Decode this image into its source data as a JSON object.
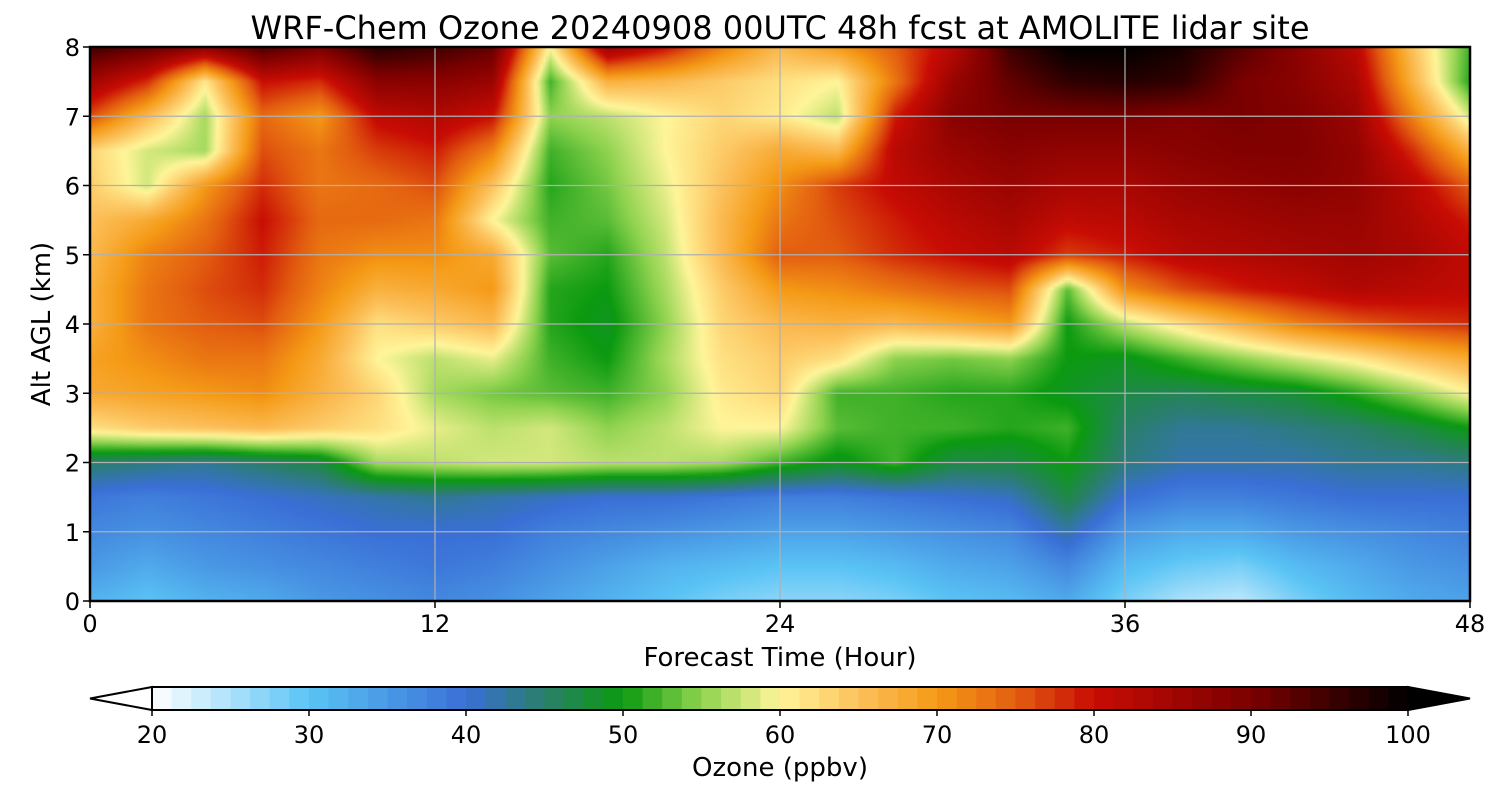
{
  "chart_data": {
    "type": "heatmap",
    "title": "WRF-Chem Ozone  20240908 00UTC 48h fcst at AMOLITE lidar site",
    "xlabel": "Forecast Time (Hour)",
    "ylabel": "Alt AGL (km)",
    "xlim": [
      0,
      48
    ],
    "ylim": [
      0,
      8
    ],
    "x_ticks": [
      "0",
      "12",
      "24",
      "36",
      "48"
    ],
    "y_ticks": [
      "0",
      "1",
      "2",
      "3",
      "4",
      "5",
      "6",
      "7",
      "8"
    ],
    "grid": true,
    "colorbar": {
      "label": "Ozone  (ppbv)",
      "range": [
        20,
        100
      ],
      "ticks": [
        "20",
        "30",
        "40",
        "50",
        "60",
        "70",
        "80",
        "90",
        "100"
      ],
      "extend": "both",
      "stops": [
        {
          "v": 20,
          "c": "#ffffff"
        },
        {
          "v": 30,
          "c": "#5ac4f5"
        },
        {
          "v": 40,
          "c": "#3a6fd6"
        },
        {
          "v": 45,
          "c": "#2a7f6a"
        },
        {
          "v": 50,
          "c": "#0b9a10"
        },
        {
          "v": 55,
          "c": "#8fd34f"
        },
        {
          "v": 60,
          "c": "#fff59a"
        },
        {
          "v": 65,
          "c": "#fcc15c"
        },
        {
          "v": 70,
          "c": "#f59a16"
        },
        {
          "v": 75,
          "c": "#e35e10"
        },
        {
          "v": 80,
          "c": "#c80c04"
        },
        {
          "v": 90,
          "c": "#7a0000"
        },
        {
          "v": 100,
          "c": "#000000"
        }
      ]
    },
    "x": [
      0,
      2,
      4,
      6,
      8,
      10,
      12,
      14,
      16,
      18,
      20,
      22,
      24,
      26,
      28,
      30,
      32,
      34,
      36,
      38,
      40,
      42,
      44,
      46,
      48
    ],
    "y": [
      0,
      0.5,
      1,
      1.5,
      2,
      2.5,
      3,
      3.5,
      4,
      4.5,
      5,
      5.5,
      6,
      6.5,
      7,
      7.5,
      8
    ],
    "z": [
      [
        32,
        30,
        32,
        33,
        35,
        36,
        37,
        36,
        34,
        32,
        30,
        28,
        27,
        27,
        28,
        30,
        31,
        33,
        28,
        25,
        24,
        28,
        31,
        33,
        34
      ],
      [
        35,
        33,
        35,
        36,
        37,
        38,
        39,
        38,
        36,
        34,
        32,
        31,
        30,
        30,
        31,
        33,
        34,
        37,
        31,
        29,
        28,
        31,
        33,
        35,
        36
      ],
      [
        37,
        36,
        37,
        38,
        39,
        40,
        40,
        40,
        38,
        37,
        36,
        35,
        34,
        34,
        35,
        36,
        37,
        42,
        35,
        33,
        33,
        35,
        36,
        37,
        38
      ],
      [
        39,
        38,
        39,
        40,
        41,
        42,
        43,
        42,
        41,
        40,
        40,
        39,
        38,
        38,
        39,
        40,
        41,
        47,
        40,
        38,
        38,
        39,
        40,
        40,
        40
      ],
      [
        45,
        44,
        43,
        45,
        47,
        56,
        57,
        58,
        58,
        57,
        57,
        56,
        52,
        49,
        52,
        47,
        47,
        50,
        44,
        42,
        42,
        42,
        43,
        43,
        44
      ],
      [
        62,
        64,
        65,
        66,
        64,
        62,
        59,
        57,
        58,
        55,
        57,
        60,
        60,
        53,
        52,
        52,
        51,
        52,
        45,
        43,
        43,
        44,
        45,
        47,
        50
      ],
      [
        68,
        69,
        70,
        71,
        67,
        63,
        56,
        54,
        53,
        52,
        55,
        61,
        63,
        52,
        52,
        51,
        51,
        49,
        47,
        46,
        47,
        48,
        51,
        55,
        60
      ],
      [
        69,
        71,
        73,
        73,
        68,
        60,
        57,
        59,
        52,
        50,
        56,
        62,
        64,
        62,
        55,
        54,
        55,
        50,
        49,
        52,
        55,
        58,
        61,
        65,
        68
      ],
      [
        67,
        73,
        75,
        76,
        70,
        62,
        64,
        66,
        51,
        49,
        55,
        63,
        66,
        67,
        66,
        68,
        70,
        50,
        57,
        62,
        67,
        72,
        75,
        77,
        78
      ],
      [
        67,
        73,
        76,
        78,
        72,
        67,
        68,
        70,
        51,
        50,
        56,
        64,
        70,
        71,
        73,
        75,
        76,
        53,
        71,
        76,
        79,
        81,
        83,
        82,
        81
      ],
      [
        66,
        72,
        75,
        79,
        73,
        71,
        71,
        68,
        53,
        51,
        57,
        66,
        75,
        75,
        78,
        80,
        82,
        77,
        79,
        82,
        83,
        84,
        85,
        84,
        81
      ],
      [
        65,
        68,
        73,
        80,
        74,
        74,
        73,
        60,
        52,
        53,
        58,
        66,
        73,
        76,
        79,
        82,
        84,
        81,
        82,
        84,
        85,
        86,
        86,
        83,
        79
      ],
      [
        64,
        58,
        70,
        78,
        73,
        74,
        76,
        65,
        51,
        54,
        59,
        65,
        71,
        77,
        81,
        84,
        86,
        84,
        84,
        86,
        87,
        88,
        87,
        82,
        75
      ],
      [
        63,
        58,
        56,
        76,
        73,
        77,
        79,
        72,
        52,
        55,
        60,
        64,
        68,
        66,
        82,
        86,
        88,
        87,
        87,
        88,
        89,
        89,
        87,
        78,
        67
      ],
      [
        76,
        66,
        56,
        74,
        70,
        81,
        83,
        80,
        55,
        57,
        60,
        63,
        61,
        57,
        79,
        88,
        90,
        90,
        90,
        89,
        90,
        89,
        86,
        72,
        58
      ],
      [
        85,
        78,
        61,
        80,
        78,
        88,
        88,
        86,
        52,
        67,
        66,
        64,
        62,
        60,
        73,
        86,
        92,
        96,
        97,
        96,
        90,
        88,
        84,
        67,
        51
      ],
      [
        95,
        92,
        88,
        94,
        90,
        97,
        95,
        92,
        60,
        86,
        80,
        72,
        66,
        70,
        75,
        82,
        95,
        100,
        100,
        98,
        93,
        88,
        82,
        65,
        52
      ]
    ]
  }
}
